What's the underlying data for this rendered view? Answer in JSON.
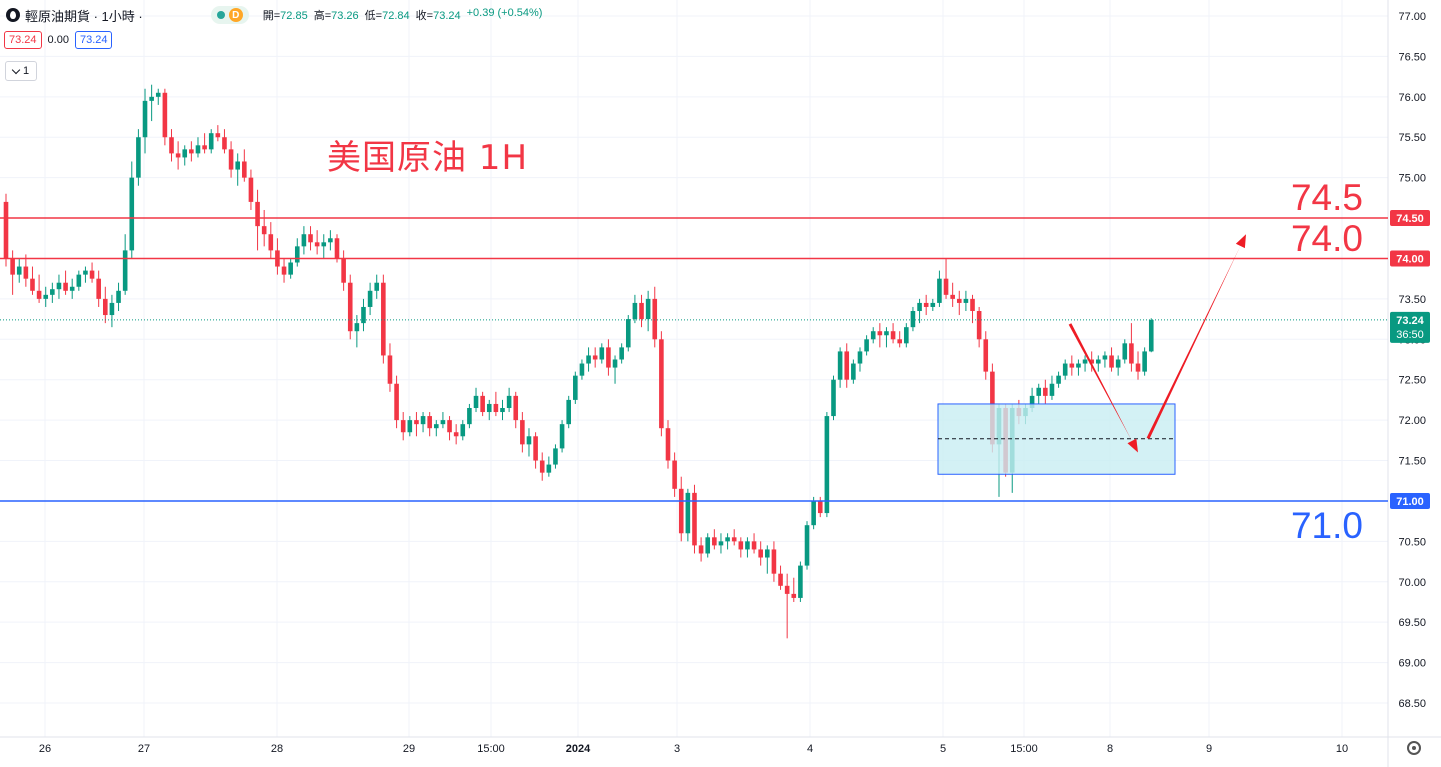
{
  "header": {
    "symbol": "輕原油期貨 · 1小時 ·",
    "market_badge": "D",
    "ohlc": [
      {
        "label": "開",
        "value": "72.85"
      },
      {
        "label": "高",
        "value": "73.26"
      },
      {
        "label": "低",
        "value": "72.84"
      },
      {
        "label": "收",
        "value": "73.24"
      }
    ],
    "change": "+0.39 (+0.54%)",
    "sell_price": "73.24",
    "spread": "0.00",
    "buy_price": "73.24",
    "quantity": "1"
  },
  "annotation": {
    "title": "美国原油 1H",
    "levels": [
      "74.5",
      "74.0",
      "71.0"
    ]
  },
  "colors": {
    "up": "#089981",
    "down": "#f23645",
    "resistance": "#f23645",
    "support": "#2962ff",
    "zone_fill": "#c8eef3",
    "zone_border": "#2962ff"
  },
  "chart_data": {
    "type": "candlestick",
    "timeframe": "1H",
    "y_axis": {
      "ylim": [
        68.5,
        77.0
      ],
      "ticks": [
        "77.00",
        "76.50",
        "76.00",
        "75.50",
        "75.00",
        "74.50",
        "74.00",
        "73.50",
        "73.00",
        "72.50",
        "72.00",
        "71.50",
        "71.00",
        "70.50",
        "70.00",
        "69.50",
        "69.00",
        "68.50"
      ]
    },
    "x_axis": {
      "tick_labels": [
        "26",
        "27",
        "28",
        "29",
        "15:00",
        "2024",
        "3",
        "4",
        "5",
        "15:00",
        "8",
        "9",
        "10"
      ]
    },
    "horizontal_lines": [
      {
        "value": 74.5,
        "label": "74.50",
        "color": "#f23645"
      },
      {
        "value": 74.0,
        "label": "74.00",
        "color": "#f23645"
      },
      {
        "value": 71.0,
        "label": "71.00",
        "color": "#2962ff"
      }
    ],
    "last_price": {
      "value": 73.24,
      "label": "73.24",
      "countdown": "36:50"
    },
    "zone": {
      "price_top": 72.2,
      "price_bottom": 71.33,
      "midline": 71.77
    },
    "projected_path": [
      73.24,
      71.6,
      74.3
    ],
    "candles": [
      [
        74.7,
        74.8,
        73.9,
        74.0
      ],
      [
        74.0,
        74.1,
        73.55,
        73.8
      ],
      [
        73.8,
        74.0,
        73.7,
        73.9
      ],
      [
        73.9,
        74.05,
        73.65,
        73.75
      ],
      [
        73.75,
        73.9,
        73.55,
        73.6
      ],
      [
        73.6,
        73.8,
        73.45,
        73.5
      ],
      [
        73.5,
        73.65,
        73.4,
        73.55
      ],
      [
        73.55,
        73.7,
        73.45,
        73.62
      ],
      [
        73.62,
        73.8,
        73.5,
        73.7
      ],
      [
        73.7,
        73.85,
        73.55,
        73.6
      ],
      [
        73.6,
        73.75,
        73.5,
        73.65
      ],
      [
        73.65,
        73.85,
        73.6,
        73.8
      ],
      [
        73.8,
        73.9,
        73.7,
        73.85
      ],
      [
        73.85,
        73.95,
        73.7,
        73.75
      ],
      [
        73.75,
        73.85,
        73.4,
        73.5
      ],
      [
        73.5,
        73.65,
        73.2,
        73.3
      ],
      [
        73.3,
        73.55,
        73.15,
        73.45
      ],
      [
        73.45,
        73.7,
        73.35,
        73.6
      ],
      [
        73.6,
        74.3,
        73.55,
        74.1
      ],
      [
        74.1,
        75.2,
        74.0,
        75.0
      ],
      [
        75.0,
        75.6,
        74.9,
        75.5
      ],
      [
        75.5,
        76.1,
        75.3,
        75.95
      ],
      [
        75.95,
        76.15,
        75.7,
        76.0
      ],
      [
        76.0,
        76.1,
        75.9,
        76.05
      ],
      [
        76.05,
        76.1,
        75.4,
        75.5
      ],
      [
        75.5,
        75.6,
        75.2,
        75.3
      ],
      [
        75.3,
        75.45,
        75.1,
        75.25
      ],
      [
        75.25,
        75.4,
        75.15,
        75.35
      ],
      [
        75.35,
        75.45,
        75.2,
        75.3
      ],
      [
        75.3,
        75.5,
        75.25,
        75.4
      ],
      [
        75.4,
        75.55,
        75.3,
        75.35
      ],
      [
        75.35,
        75.6,
        75.3,
        75.55
      ],
      [
        75.55,
        75.65,
        75.45,
        75.5
      ],
      [
        75.5,
        75.6,
        75.3,
        75.35
      ],
      [
        75.35,
        75.45,
        75.0,
        75.1
      ],
      [
        75.1,
        75.3,
        74.9,
        75.2
      ],
      [
        75.2,
        75.35,
        74.95,
        75.0
      ],
      [
        75.0,
        75.1,
        74.6,
        74.7
      ],
      [
        74.7,
        74.85,
        74.1,
        74.4
      ],
      [
        74.4,
        74.6,
        74.15,
        74.3
      ],
      [
        74.3,
        74.45,
        74.0,
        74.1
      ],
      [
        74.1,
        74.25,
        73.8,
        73.9
      ],
      [
        73.9,
        74.0,
        73.7,
        73.8
      ],
      [
        73.8,
        74.0,
        73.75,
        73.95
      ],
      [
        73.95,
        74.25,
        73.9,
        74.15
      ],
      [
        74.15,
        74.4,
        74.05,
        74.3
      ],
      [
        74.3,
        74.4,
        74.1,
        74.2
      ],
      [
        74.2,
        74.35,
        74.05,
        74.15
      ],
      [
        74.15,
        74.3,
        74.0,
        74.2
      ],
      [
        74.2,
        74.35,
        74.1,
        74.25
      ],
      [
        74.25,
        74.3,
        73.95,
        74.0
      ],
      [
        74.0,
        74.1,
        73.6,
        73.7
      ],
      [
        73.7,
        73.8,
        73.0,
        73.1
      ],
      [
        73.1,
        73.3,
        72.9,
        73.2
      ],
      [
        73.2,
        73.5,
        73.1,
        73.4
      ],
      [
        73.4,
        73.7,
        73.3,
        73.6
      ],
      [
        73.6,
        73.8,
        73.5,
        73.7
      ],
      [
        73.7,
        73.8,
        72.7,
        72.8
      ],
      [
        72.8,
        72.95,
        72.35,
        72.45
      ],
      [
        72.45,
        72.55,
        71.9,
        72.0
      ],
      [
        72.0,
        72.1,
        71.75,
        71.85
      ],
      [
        71.85,
        72.05,
        71.8,
        72.0
      ],
      [
        72.0,
        72.1,
        71.8,
        71.95
      ],
      [
        71.95,
        72.1,
        71.85,
        72.05
      ],
      [
        72.05,
        72.1,
        71.8,
        71.9
      ],
      [
        71.9,
        72.0,
        71.8,
        71.95
      ],
      [
        71.95,
        72.1,
        71.9,
        72.0
      ],
      [
        72.0,
        72.05,
        71.75,
        71.85
      ],
      [
        71.85,
        71.95,
        71.7,
        71.8
      ],
      [
        71.8,
        72.0,
        71.75,
        71.95
      ],
      [
        71.95,
        72.2,
        71.9,
        72.15
      ],
      [
        72.15,
        72.4,
        72.1,
        72.3
      ],
      [
        72.3,
        72.35,
        72.05,
        72.1
      ],
      [
        72.1,
        72.25,
        72.0,
        72.2
      ],
      [
        72.2,
        72.35,
        72.05,
        72.1
      ],
      [
        72.1,
        72.25,
        72.0,
        72.15
      ],
      [
        72.15,
        72.4,
        72.1,
        72.3
      ],
      [
        72.3,
        72.35,
        71.9,
        72.0
      ],
      [
        72.0,
        72.1,
        71.6,
        71.7
      ],
      [
        71.7,
        71.9,
        71.55,
        71.8
      ],
      [
        71.8,
        71.85,
        71.4,
        71.5
      ],
      [
        71.5,
        71.6,
        71.25,
        71.35
      ],
      [
        71.35,
        71.55,
        71.3,
        71.45
      ],
      [
        71.45,
        71.7,
        71.4,
        71.65
      ],
      [
        71.65,
        72.0,
        71.6,
        71.95
      ],
      [
        71.95,
        72.3,
        71.9,
        72.25
      ],
      [
        72.25,
        72.6,
        72.2,
        72.55
      ],
      [
        72.55,
        72.75,
        72.5,
        72.7
      ],
      [
        72.7,
        72.9,
        72.6,
        72.8
      ],
      [
        72.8,
        72.9,
        72.65,
        72.75
      ],
      [
        72.75,
        72.95,
        72.7,
        72.9
      ],
      [
        72.9,
        73.0,
        72.55,
        72.65
      ],
      [
        72.65,
        72.8,
        72.45,
        72.75
      ],
      [
        72.75,
        72.95,
        72.7,
        72.9
      ],
      [
        72.9,
        73.3,
        72.85,
        73.25
      ],
      [
        73.25,
        73.55,
        73.2,
        73.45
      ],
      [
        73.45,
        73.55,
        73.15,
        73.25
      ],
      [
        73.25,
        73.6,
        73.1,
        73.5
      ],
      [
        73.5,
        73.65,
        72.9,
        73.0
      ],
      [
        73.0,
        73.1,
        71.8,
        71.9
      ],
      [
        71.9,
        72.0,
        71.4,
        71.5
      ],
      [
        71.5,
        71.6,
        71.05,
        71.15
      ],
      [
        71.15,
        71.3,
        70.5,
        70.6
      ],
      [
        70.6,
        71.15,
        70.5,
        71.1
      ],
      [
        71.1,
        71.2,
        70.35,
        70.45
      ],
      [
        70.45,
        70.55,
        70.25,
        70.35
      ],
      [
        70.35,
        70.6,
        70.3,
        70.55
      ],
      [
        70.55,
        70.65,
        70.4,
        70.45
      ],
      [
        70.45,
        70.6,
        70.35,
        70.5
      ],
      [
        70.5,
        70.6,
        70.4,
        70.55
      ],
      [
        70.55,
        70.65,
        70.45,
        70.5
      ],
      [
        70.5,
        70.55,
        70.3,
        70.4
      ],
      [
        70.4,
        70.55,
        70.3,
        70.5
      ],
      [
        70.5,
        70.6,
        70.35,
        70.4
      ],
      [
        70.4,
        70.5,
        70.2,
        70.3
      ],
      [
        70.3,
        70.45,
        70.1,
        70.4
      ],
      [
        70.4,
        70.5,
        70.0,
        70.1
      ],
      [
        70.1,
        70.2,
        69.9,
        69.95
      ],
      [
        69.95,
        70.1,
        69.3,
        69.85
      ],
      [
        69.85,
        70.05,
        69.75,
        69.8
      ],
      [
        69.8,
        70.25,
        69.75,
        70.2
      ],
      [
        70.2,
        70.75,
        70.15,
        70.7
      ],
      [
        70.7,
        71.05,
        70.65,
        71.0
      ],
      [
        71.0,
        71.05,
        70.8,
        70.85
      ],
      [
        70.85,
        72.1,
        70.8,
        72.05
      ],
      [
        72.05,
        72.55,
        72.0,
        72.5
      ],
      [
        72.5,
        72.9,
        72.4,
        72.85
      ],
      [
        72.85,
        72.95,
        72.4,
        72.5
      ],
      [
        72.5,
        72.75,
        72.45,
        72.7
      ],
      [
        72.7,
        72.9,
        72.6,
        72.85
      ],
      [
        72.85,
        73.05,
        72.8,
        73.0
      ],
      [
        73.0,
        73.15,
        72.95,
        73.1
      ],
      [
        73.1,
        73.2,
        72.9,
        73.05
      ],
      [
        73.05,
        73.15,
        72.9,
        73.1
      ],
      [
        73.1,
        73.2,
        72.95,
        73.0
      ],
      [
        73.0,
        73.1,
        72.9,
        72.95
      ],
      [
        72.95,
        73.2,
        72.9,
        73.15
      ],
      [
        73.15,
        73.4,
        73.1,
        73.35
      ],
      [
        73.35,
        73.5,
        73.2,
        73.45
      ],
      [
        73.45,
        73.55,
        73.3,
        73.4
      ],
      [
        73.4,
        73.5,
        73.35,
        73.45
      ],
      [
        73.45,
        73.85,
        73.4,
        73.75
      ],
      [
        73.75,
        74.0,
        73.5,
        73.55
      ],
      [
        73.55,
        73.7,
        73.4,
        73.5
      ],
      [
        73.5,
        73.6,
        73.3,
        73.45
      ],
      [
        73.45,
        73.6,
        73.35,
        73.5
      ],
      [
        73.5,
        73.55,
        73.2,
        73.35
      ],
      [
        73.35,
        73.4,
        72.9,
        73.0
      ],
      [
        73.0,
        73.1,
        72.5,
        72.6
      ],
      [
        72.6,
        72.7,
        71.6,
        71.7
      ],
      [
        71.7,
        72.2,
        71.05,
        72.15
      ],
      [
        72.15,
        72.2,
        71.3,
        71.35
      ],
      [
        71.35,
        72.2,
        71.1,
        72.15
      ],
      [
        72.15,
        72.25,
        71.95,
        72.05
      ],
      [
        72.05,
        72.2,
        71.95,
        72.15
      ],
      [
        72.15,
        72.4,
        72.1,
        72.3
      ],
      [
        72.3,
        72.45,
        72.2,
        72.4
      ],
      [
        72.4,
        72.5,
        72.2,
        72.3
      ],
      [
        72.3,
        72.55,
        72.25,
        72.45
      ],
      [
        72.45,
        72.6,
        72.4,
        72.55
      ],
      [
        72.55,
        72.75,
        72.5,
        72.7
      ],
      [
        72.7,
        72.8,
        72.55,
        72.65
      ],
      [
        72.65,
        72.75,
        72.55,
        72.7
      ],
      [
        72.7,
        72.8,
        72.6,
        72.75
      ],
      [
        72.75,
        72.85,
        72.6,
        72.7
      ],
      [
        72.7,
        72.8,
        72.6,
        72.75
      ],
      [
        72.75,
        72.85,
        72.65,
        72.8
      ],
      [
        72.8,
        72.9,
        72.6,
        72.65
      ],
      [
        72.65,
        72.8,
        72.55,
        72.75
      ],
      [
        72.75,
        73.0,
        72.7,
        72.95
      ],
      [
        72.95,
        73.2,
        72.6,
        72.7
      ],
      [
        72.7,
        72.85,
        72.5,
        72.6
      ],
      [
        72.6,
        72.9,
        72.55,
        72.85
      ],
      [
        72.85,
        73.26,
        72.84,
        73.24
      ]
    ]
  }
}
